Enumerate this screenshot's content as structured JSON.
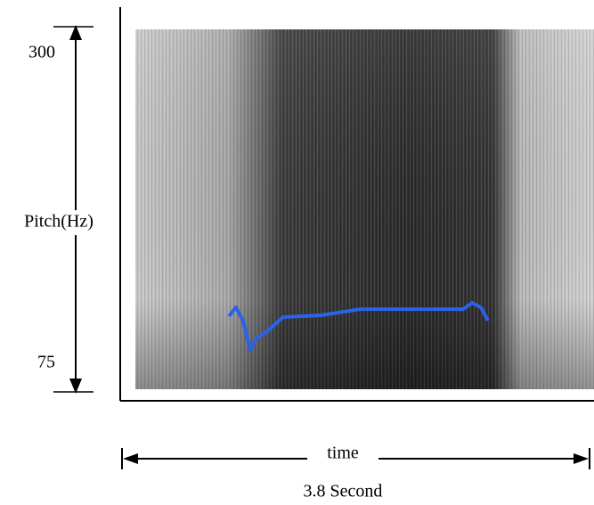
{
  "chart_data": {
    "type": "line",
    "y_label": "Pitch(Hz)",
    "x_label": "time",
    "duration_label": "3.8 Second",
    "xlim": [
      0,
      3.8
    ],
    "ylim": [
      75,
      300
    ],
    "yticks": [
      75,
      300
    ],
    "series": [
      {
        "color": "#2a62e8",
        "x": [
          0.869,
          0.926,
          0.984,
          1.042,
          1.093,
          1.18,
          1.31,
          1.614,
          1.94,
          2.772,
          2.845,
          2.917,
          2.975
        ],
        "values": [
          121.6,
          127.1,
          118.9,
          100.8,
          107.9,
          112.3,
          121.1,
          122.2,
          126.0,
          126.0,
          129.9,
          127.1,
          118.9
        ]
      }
    ]
  }
}
